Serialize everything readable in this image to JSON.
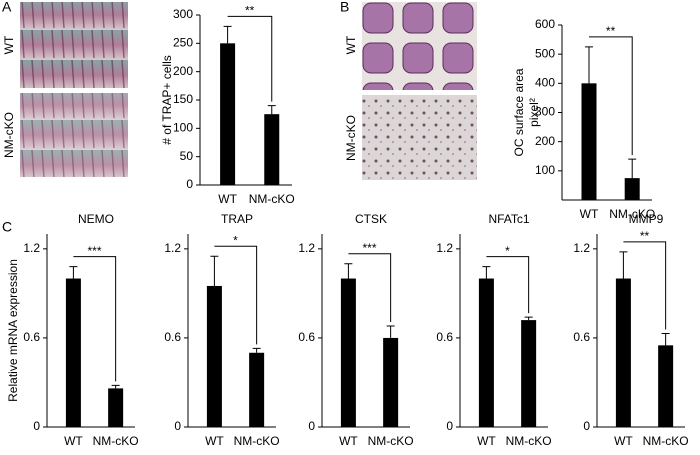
{
  "figure": {
    "panel_labels": [
      "A",
      "B",
      "C"
    ],
    "image_labels": [
      [
        "WT",
        "NM-cKO"
      ],
      [
        "WT",
        "NM-cKO"
      ]
    ]
  },
  "chart_data": [
    {
      "type": "bar",
      "ylabel": "# of TRAP+ cells",
      "categories": [
        "WT",
        "NM-cKO"
      ],
      "values": [
        250,
        125
      ],
      "errors": [
        30,
        15
      ],
      "annotation": "**",
      "ylim": [
        0,
        300
      ],
      "yticks": [
        0,
        50,
        100,
        150,
        200,
        250,
        300
      ],
      "color": "#000000"
    },
    {
      "type": "bar",
      "ylabel": "OC surface area",
      "ylabel2": "pixel²",
      "categories": [
        "WT",
        "NM-cKO"
      ],
      "values": [
        400,
        75
      ],
      "errors": [
        125,
        65
      ],
      "annotation": "**",
      "ylim": [
        0,
        600
      ],
      "yticks": [
        100,
        200,
        300,
        400,
        500,
        600
      ],
      "color": "#000000"
    },
    {
      "type": "bar",
      "title": "NEMO",
      "ylabel": "Relative mRNA expression",
      "categories": [
        "WT",
        "NM-cKO"
      ],
      "values": [
        1.0,
        0.26
      ],
      "errors": [
        0.08,
        0.02
      ],
      "annotation": "***",
      "ylim": [
        0,
        1.3
      ],
      "yticks": [
        0,
        0.6,
        1.2
      ],
      "color": "#000000"
    },
    {
      "type": "bar",
      "title": "TRAP",
      "categories": [
        "WT",
        "NM-cKO"
      ],
      "values": [
        0.95,
        0.5
      ],
      "errors": [
        0.2,
        0.03
      ],
      "annotation": "*",
      "ylim": [
        0,
        1.3
      ],
      "yticks": [
        0,
        0.6,
        1.2
      ],
      "color": "#000000"
    },
    {
      "type": "bar",
      "title": "CTSK",
      "categories": [
        "WT",
        "NM-cKO"
      ],
      "values": [
        1.0,
        0.6
      ],
      "errors": [
        0.1,
        0.08
      ],
      "annotation": "***",
      "ylim": [
        0,
        1.3
      ],
      "yticks": [
        0,
        0.6,
        1.2
      ],
      "color": "#000000"
    },
    {
      "type": "bar",
      "title": "NFATc1",
      "categories": [
        "WT",
        "NM-cKO"
      ],
      "values": [
        1.0,
        0.72
      ],
      "errors": [
        0.08,
        0.02
      ],
      "annotation": "*",
      "ylim": [
        0,
        1.3
      ],
      "yticks": [
        0,
        0.6,
        1.2
      ],
      "color": "#000000"
    },
    {
      "type": "bar",
      "title": "MMP9",
      "categories": [
        "WT",
        "NM-cKO"
      ],
      "values": [
        1.0,
        0.55
      ],
      "errors": [
        0.18,
        0.08
      ],
      "annotation": "**",
      "ylim": [
        0,
        1.3
      ],
      "yticks": [
        0,
        0.6,
        1.2
      ],
      "color": "#000000"
    }
  ]
}
